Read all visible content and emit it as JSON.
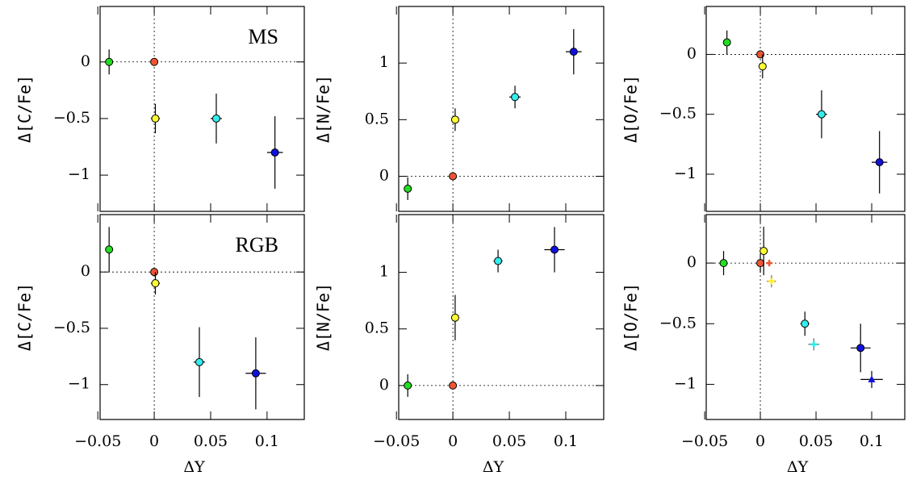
{
  "chart_data": [
    {
      "type": "scatter",
      "ylabel": "Δ[C/Fe]",
      "annotation": "MS",
      "show_xtick_labels": false,
      "zero_lines": true,
      "xlim": [
        -0.048,
        0.133
      ],
      "ylim": [
        -1.32,
        0.49
      ],
      "xticks": [
        {
          "value": -0.05,
          "label": "−0.05"
        },
        0,
        0.05,
        0.1
      ],
      "yticks": [
        {
          "value": -1,
          "label": "−1"
        },
        {
          "value": -0.5,
          "label": "−0.5"
        },
        0
      ],
      "series": [
        {
          "marker": "circle",
          "colors": [
            "#22dd22",
            "#ee5533",
            "#ffff33",
            "#33eeee",
            "#1111dd"
          ],
          "x": [
            -0.04,
            0,
            0.001,
            0.055,
            0.107
          ],
          "values": [
            0,
            0,
            -0.5,
            -0.5,
            -0.8
          ],
          "xerr": [
            0.003,
            0,
            0.004,
            0.005,
            0.007
          ],
          "yerr": [
            0.11,
            0,
            0.13,
            0.22,
            0.32
          ]
        }
      ]
    },
    {
      "type": "scatter",
      "ylabel": "Δ[N/Fe]",
      "show_xtick_labels": false,
      "zero_lines": true,
      "xlim": [
        -0.048,
        0.1336
      ],
      "ylim": [
        -0.31,
        1.5
      ],
      "xticks": [
        {
          "value": -0.05,
          "label": "−0.05"
        },
        0,
        0.05,
        0.1
      ],
      "yticks": [
        0,
        0.5,
        1
      ],
      "series": [
        {
          "marker": "circle",
          "colors": [
            "#22dd22",
            "#ee5533",
            "#ffff33",
            "#33eeee",
            "#1111dd"
          ],
          "x": [
            -0.04,
            0,
            0.002,
            0.055,
            0.107
          ],
          "values": [
            -0.11,
            0,
            0.5,
            0.7,
            1.1
          ],
          "xerr": [
            0.003,
            0,
            0.003,
            0.005,
            0.007
          ],
          "yerr": [
            0.1,
            0,
            0.1,
            0.1,
            0.2
          ]
        }
      ]
    },
    {
      "type": "scatter",
      "ylabel": "Δ[O/Fe]",
      "show_xtick_labels": false,
      "zero_lines": true,
      "xlim": [
        -0.0486,
        0.1297
      ],
      "ylim": [
        -1.31,
        0.4
      ],
      "xticks": [
        {
          "value": -0.05,
          "label": "−0.05"
        },
        0,
        0.05,
        0.1
      ],
      "yticks": [
        {
          "value": -1,
          "label": "−1"
        },
        {
          "value": -0.5,
          "label": "−0.5"
        },
        0
      ],
      "series": [
        {
          "marker": "circle",
          "colors": [
            "#22dd22",
            "#ee5533",
            "#ffff33",
            "#33eeee",
            "#1111dd"
          ],
          "x": [
            -0.03,
            0,
            0.002,
            0.055,
            0.107
          ],
          "values": [
            0.1,
            0,
            -0.1,
            -0.5,
            -0.9
          ],
          "xerr": [
            0.003,
            0,
            0.003,
            0.005,
            0.007
          ],
          "yerr": [
            0.1,
            0,
            0.1,
            0.2,
            0.26
          ]
        }
      ]
    },
    {
      "type": "scatter",
      "ylabel": "Δ[C/Fe]",
      "xlabel": "ΔY",
      "annotation": "RGB",
      "show_xtick_labels": true,
      "zero_lines": true,
      "xlim": [
        -0.048,
        0.133
      ],
      "ylim": [
        -1.31,
        0.51
      ],
      "xticks": [
        {
          "value": -0.05,
          "label": "−0.05"
        },
        0,
        0.05,
        0.1
      ],
      "yticks": [
        {
          "value": -1,
          "label": "−1"
        },
        {
          "value": -0.5,
          "label": "−0.5"
        },
        0
      ],
      "series": [
        {
          "marker": "circle",
          "colors": [
            "#22dd22",
            "#ee5533",
            "#ffff33",
            "#33eeee",
            "#1111dd"
          ],
          "x": [
            -0.04,
            0,
            0.001,
            0.04,
            0.09
          ],
          "values": [
            0.2,
            0,
            -0.1,
            -0.8,
            -0.9
          ],
          "xerr": [
            0.003,
            0.003,
            0.004,
            0.005,
            0.009
          ],
          "yerr": [
            0.2,
            0.03,
            0.1,
            0.31,
            0.32
          ]
        }
      ]
    },
    {
      "type": "scatter",
      "ylabel": "Δ[N/Fe]",
      "xlabel": "ΔY",
      "show_xtick_labels": true,
      "zero_lines": true,
      "xlim": [
        -0.048,
        0.1336
      ],
      "ylim": [
        -0.3,
        1.51
      ],
      "xticks": [
        {
          "value": -0.05,
          "label": "−0.05"
        },
        0,
        0.05,
        0.1
      ],
      "yticks": [
        0,
        0.5,
        1
      ],
      "series": [
        {
          "marker": "circle",
          "colors": [
            "#22dd22",
            "#ee5533",
            "#ffff33",
            "#33eeee",
            "#1111dd"
          ],
          "x": [
            -0.04,
            0,
            0.002,
            0.04,
            0.09
          ],
          "values": [
            0,
            0,
            0.6,
            1.1,
            1.2
          ],
          "xerr": [
            0.003,
            0,
            0.003,
            0.004,
            0.009
          ],
          "yerr": [
            0.1,
            0,
            0.2,
            0.1,
            0.2
          ]
        }
      ]
    },
    {
      "type": "scatter",
      "ylabel": "Δ[O/Fe]",
      "xlabel": "ΔY",
      "show_xtick_labels": true,
      "zero_lines": true,
      "xlim": [
        -0.0486,
        0.1297
      ],
      "ylim": [
        -1.29,
        0.4
      ],
      "xticks": [
        {
          "value": -0.05,
          "label": "−0.05"
        },
        0,
        0.05,
        0.1
      ],
      "yticks": [
        {
          "value": -1,
          "label": "−1"
        },
        {
          "value": -0.5,
          "label": "−0.5"
        },
        0
      ],
      "series": [
        {
          "marker": "circle",
          "colors": [
            "#22dd22",
            "#ee5533",
            "#ffff33",
            "#33eeee",
            "#1111dd"
          ],
          "x": [
            -0.033,
            0,
            0.003,
            0.04,
            0.09
          ],
          "values": [
            0,
            0,
            0.1,
            -0.5,
            -0.7
          ],
          "xerr": [
            0.003,
            0.003,
            0.003,
            0.004,
            0.009
          ],
          "yerr": [
            0.1,
            0.08,
            0.2,
            0.1,
            0.2
          ]
        },
        {
          "markers": [
            "cross",
            "cross",
            "cross",
            "triangle"
          ],
          "colors": [
            "#ee5533",
            "#ffee22",
            "#22eeee",
            "#1111dd"
          ],
          "x": [
            0.008,
            0.01,
            0.048,
            0.1
          ],
          "values": [
            0,
            -0.15,
            -0.67,
            -0.96
          ],
          "xerr": [
            0.003,
            0.004,
            0.005,
            0.01
          ],
          "yerr": [
            0.02,
            0.05,
            0.05,
            0.07
          ]
        }
      ]
    }
  ]
}
